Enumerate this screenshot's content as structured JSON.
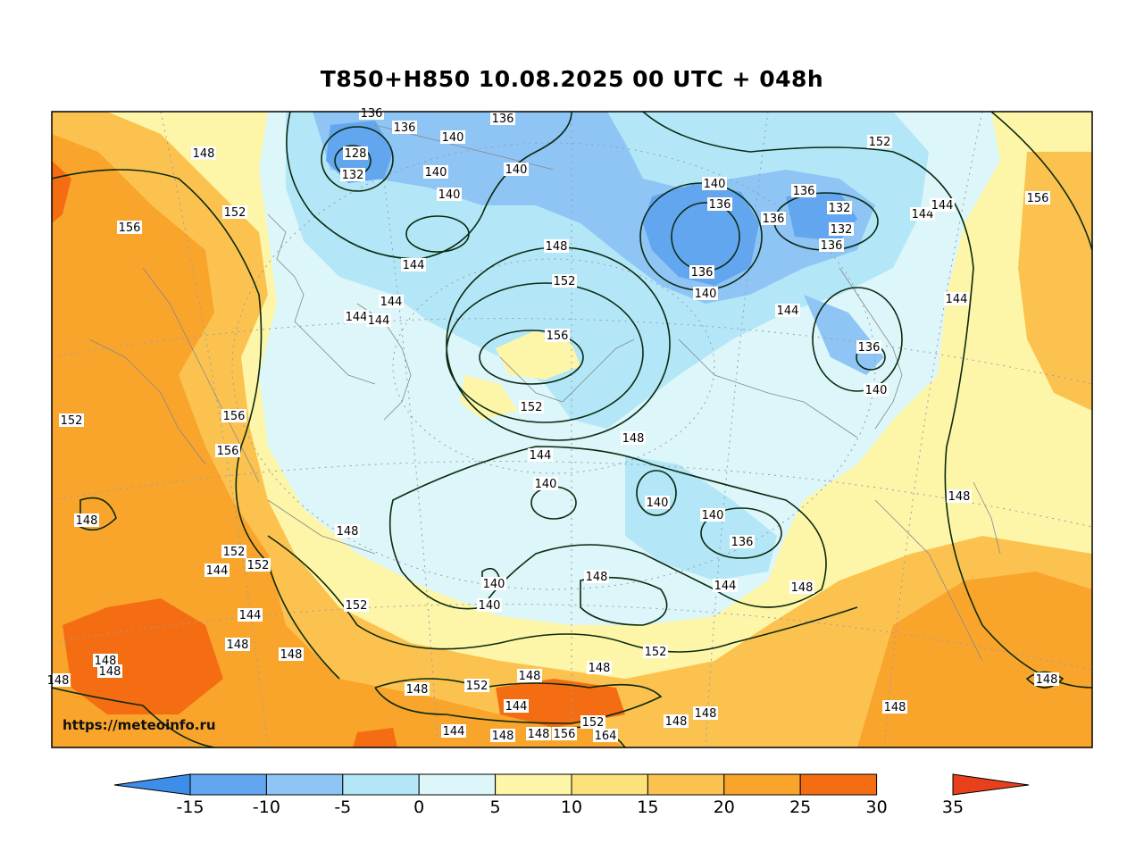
{
  "title": "T850+H850 10.08.2025 00 UTC + 048h",
  "watermark": "https://meteoinfo.ru",
  "colors": {
    "minus15": "#3d8ee8",
    "minus10": "#62a6f0",
    "minus5": "#8ec5f5",
    "zero": "#b3e7f7",
    "five": "#dcf6f9",
    "ten": "#fdf6a8",
    "fifteen": "#fde17a",
    "twenty": "#fcc24f",
    "twentyfive": "#f9a52c",
    "thirty": "#f56d12",
    "thirtyfive": "#e8401a",
    "contour": "#0b2a10",
    "coast": "#888888"
  },
  "colorbar": {
    "ticks": [
      "-15",
      "-10",
      "-5",
      "0",
      "5",
      "10",
      "15",
      "20",
      "25",
      "30",
      "35"
    ]
  },
  "contour_labels": [
    "136",
    "136",
    "136",
    "140",
    "128",
    "132",
    "140",
    "140",
    "140",
    "144",
    "152",
    "148",
    "156",
    "152",
    "136",
    "140",
    "148",
    "152",
    "156",
    "140",
    "136",
    "136",
    "136",
    "132",
    "132",
    "136",
    "144",
    "144",
    "156",
    "136",
    "140",
    "144",
    "144",
    "144",
    "144",
    "144",
    "156",
    "152",
    "156",
    "152",
    "148",
    "144",
    "140",
    "140",
    "148",
    "140",
    "140",
    "136",
    "148",
    "152",
    "152",
    "148",
    "148",
    "152",
    "140",
    "144",
    "148",
    "144",
    "144",
    "148",
    "148",
    "148",
    "148",
    "152",
    "148",
    "144",
    "152",
    "148",
    "148",
    "148",
    "148",
    "148",
    "148",
    "148",
    "156",
    "152",
    "164",
    "148",
    "148",
    "144"
  ]
}
